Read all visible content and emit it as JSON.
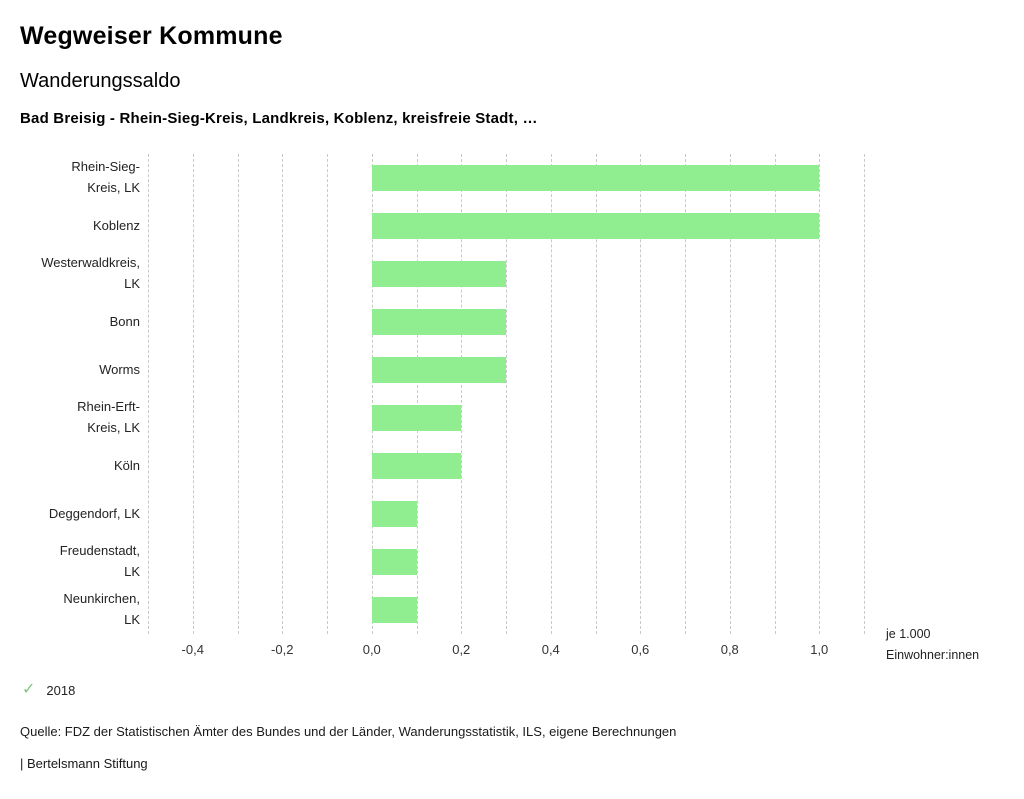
{
  "header": {
    "brand": "Wegweiser Kommune",
    "title": "Wanderungssaldo",
    "subtitle": "Bad Breisig - Rhein-Sieg-Kreis, Landkreis, Koblenz, kreisfreie Stadt, …"
  },
  "chart_data": {
    "type": "bar",
    "orientation": "horizontal",
    "categories": [
      "Rhein-Sieg-Kreis, LK",
      "Koblenz",
      "Westerwaldkreis, LK",
      "Bonn",
      "Worms",
      "Rhein-Erft-Kreis, LK",
      "Köln",
      "Deggendorf, LK",
      "Freudenstadt, LK",
      "Neunkirchen, LK"
    ],
    "category_labels": [
      "Rhein-Sieg-\nKreis, LK",
      "Koblenz",
      "Westerwaldkreis,\nLK",
      "Bonn",
      "Worms",
      "Rhein-Erft-\nKreis, LK",
      "Köln",
      "Deggendorf, LK",
      "Freudenstadt,\nLK",
      "Neunkirchen,\nLK"
    ],
    "values": [
      1.0,
      1.0,
      0.3,
      0.3,
      0.3,
      0.2,
      0.2,
      0.1,
      0.1,
      0.1
    ],
    "series_name": "2018",
    "xlim": [
      -0.5,
      1.1
    ],
    "grid_interval": 0.1,
    "grid": true,
    "x_ticks": [
      -0.4,
      -0.2,
      0.0,
      0.2,
      0.4,
      0.6,
      0.8,
      1.0
    ],
    "x_tick_labels": [
      "-0,4",
      "-0,2",
      "0,0",
      "0,2",
      "0,4",
      "0,6",
      "0,8",
      "1,0"
    ],
    "unit_label_line1": "je 1.000",
    "unit_label_line2": "Einwohner:innen",
    "bar_color": "#90ee90",
    "check_color": "#7cc87c",
    "legend": [
      {
        "marker": "check",
        "label": "2018"
      }
    ]
  },
  "footer": {
    "source": "Quelle: FDZ der Statistischen Ämter des Bundes und der Länder, Wanderungsstatistik, ILS, eigene Berechnungen",
    "attribution": "| Bertelsmann Stiftung"
  }
}
